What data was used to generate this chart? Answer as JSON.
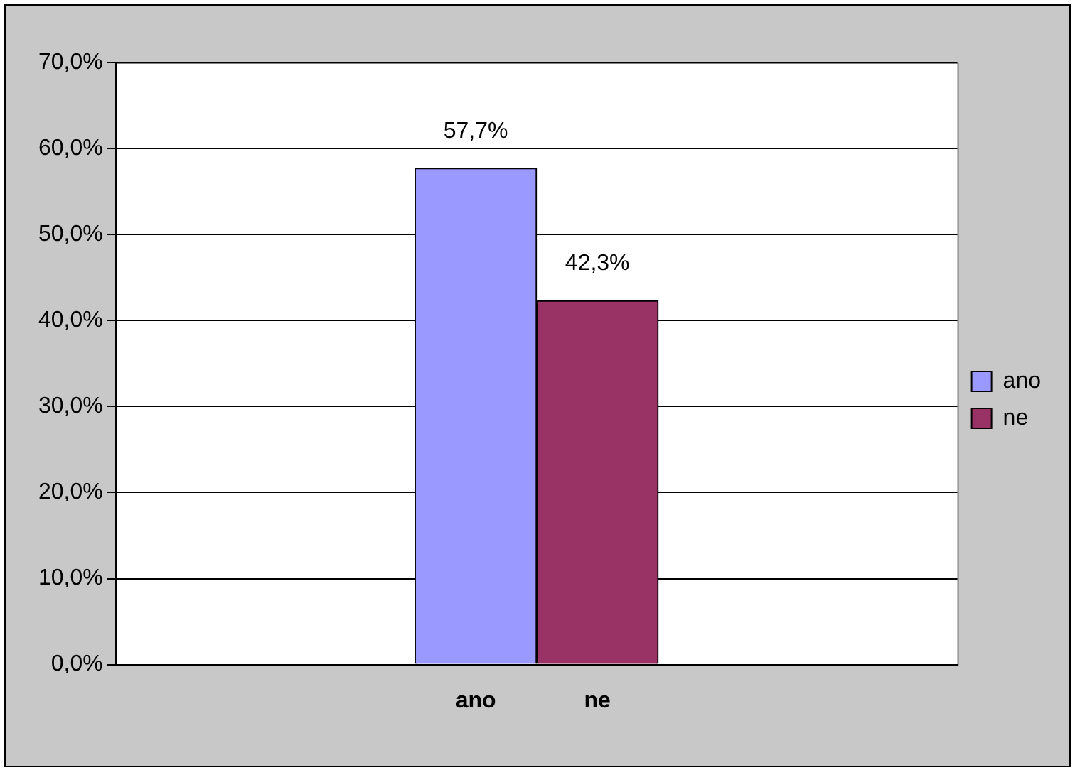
{
  "chart_data": {
    "type": "bar",
    "categories": [
      "ano",
      "ne"
    ],
    "stacked": true,
    "series": [
      {
        "name": "ano",
        "color": "#9999ff",
        "values": [
          57.7,
          null
        ],
        "value_labels": [
          "57,7%",
          null
        ]
      },
      {
        "name": "ne",
        "color": "#993366",
        "values": [
          null,
          42.3
        ],
        "value_labels": [
          null,
          "42,3%"
        ]
      }
    ],
    "ylim": [
      0,
      70
    ],
    "yticks": [
      {
        "value": 0,
        "label": "0,0%"
      },
      {
        "value": 10,
        "label": "10,0%"
      },
      {
        "value": 20,
        "label": "20,0%"
      },
      {
        "value": 30,
        "label": "30,0%"
      },
      {
        "value": 40,
        "label": "40,0%"
      },
      {
        "value": 50,
        "label": "50,0%"
      },
      {
        "value": 60,
        "label": "60,0%"
      },
      {
        "value": 70,
        "label": "70,0%"
      }
    ],
    "grid": "y",
    "legend": "right"
  }
}
